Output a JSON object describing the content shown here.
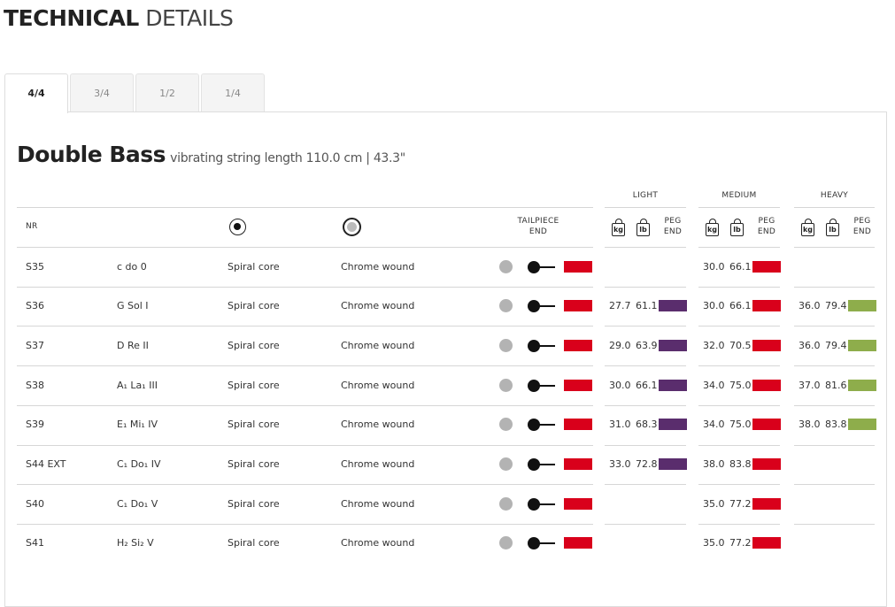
{
  "header": {
    "title_bold": "TECHNICAL",
    "title_light": "DETAILS"
  },
  "tabs": [
    "4/4",
    "3/4",
    "1/2",
    "1/4"
  ],
  "product": {
    "name": "Double Bass",
    "subtitle": "vibrating string length 110.0 cm | 43.3\""
  },
  "table": {
    "nr_header": "NR",
    "tailpiece_header": [
      "TAILPIECE",
      "END"
    ],
    "groups": [
      "LIGHT",
      "MEDIUM",
      "HEAVY"
    ],
    "unit_kg": "kg",
    "unit_lb": "lb",
    "peg_end": [
      "PEG",
      "END"
    ],
    "rows": [
      {
        "nr": "S35",
        "note": "c  do  0",
        "core": "Spiral core",
        "wound": "Chrome wound",
        "medium": [
          "30.0",
          "66.1"
        ]
      },
      {
        "nr": "S36",
        "note": "G  Sol  I",
        "core": "Spiral core",
        "wound": "Chrome wound",
        "light": [
          "27.7",
          "61.1"
        ],
        "medium": [
          "30.0",
          "66.1"
        ],
        "heavy": [
          "36.0",
          "79.4"
        ]
      },
      {
        "nr": "S37",
        "note": "D  Re  II",
        "core": "Spiral core",
        "wound": "Chrome wound",
        "light": [
          "29.0",
          "63.9"
        ],
        "medium": [
          "32.0",
          "70.5"
        ],
        "heavy": [
          "36.0",
          "79.4"
        ]
      },
      {
        "nr": "S38",
        "note": "A₁  La₁  III",
        "core": "Spiral core",
        "wound": "Chrome wound",
        "light": [
          "30.0",
          "66.1"
        ],
        "medium": [
          "34.0",
          "75.0"
        ],
        "heavy": [
          "37.0",
          "81.6"
        ]
      },
      {
        "nr": "S39",
        "note": "E₁  Mi₁  IV",
        "core": "Spiral core",
        "wound": "Chrome wound",
        "light": [
          "31.0",
          "68.3"
        ],
        "medium": [
          "34.0",
          "75.0"
        ],
        "heavy": [
          "38.0",
          "83.8"
        ]
      },
      {
        "nr": "S44 EXT",
        "note": "C₁  Do₁  IV",
        "core": "Spiral core",
        "wound": "Chrome wound",
        "light": [
          "33.0",
          "72.8"
        ],
        "medium": [
          "38.0",
          "83.8"
        ]
      },
      {
        "nr": "S40",
        "note": "C₁  Do₁  V",
        "core": "Spiral core",
        "wound": "Chrome wound",
        "medium": [
          "35.0",
          "77.2"
        ]
      },
      {
        "nr": "S41",
        "note": "H₂  Si₂  V",
        "core": "Spiral core",
        "wound": "Chrome wound",
        "medium": [
          "35.0",
          "77.2"
        ]
      }
    ]
  }
}
